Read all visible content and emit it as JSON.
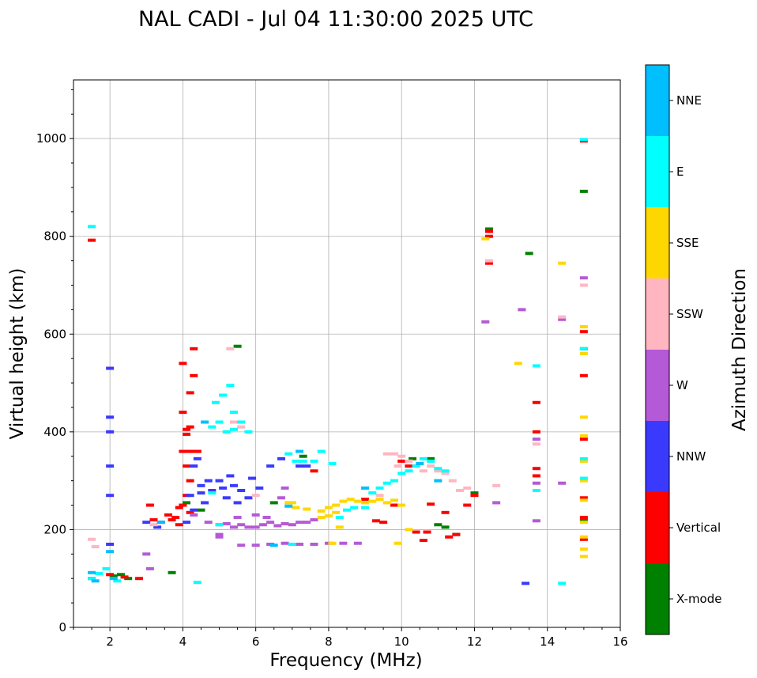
{
  "chart_data": {
    "type": "scatter",
    "title": "NAL CADI - Jul 04 11:30:00 2025 UTC",
    "xlabel": "Frequency (MHz)",
    "ylabel": "Virtual height (km)",
    "xlim": [
      1,
      16
    ],
    "ylim": [
      0,
      1120
    ],
    "xticks": [
      2,
      4,
      6,
      8,
      10,
      12,
      14,
      16
    ],
    "yticks": [
      0,
      200,
      400,
      600,
      800,
      1000
    ],
    "grid": true,
    "colorbar": {
      "label": "Azimuth Direction",
      "categories": [
        "X-mode",
        "Vertical",
        "NNW",
        "W",
        "SSW",
        "SSE",
        "E",
        "NNE"
      ],
      "colors": [
        "#008000",
        "#ff0000",
        "#3a3aff",
        "#b55ad6",
        "#ffb6c1",
        "#ffd700",
        "#00ffff",
        "#00bfff"
      ]
    },
    "series": [
      {
        "name": "X-mode",
        "points": [
          [
            2.1,
            105
          ],
          [
            2.3,
            108
          ],
          [
            2.5,
            100
          ],
          [
            3.7,
            112
          ],
          [
            4.5,
            240
          ],
          [
            4.1,
            255
          ],
          [
            6.5,
            255
          ],
          [
            7.3,
            350
          ],
          [
            10.3,
            345
          ],
          [
            10.8,
            345
          ],
          [
            11.0,
            210
          ],
          [
            11.2,
            205
          ],
          [
            12.4,
            815
          ],
          [
            13.5,
            765
          ],
          [
            15.0,
            892
          ],
          [
            15.0,
            570
          ],
          [
            5.5,
            575
          ],
          [
            11.5,
            190
          ],
          [
            12.0,
            275
          ],
          [
            15.0,
            220
          ]
        ]
      },
      {
        "name": "Vertical",
        "points": [
          [
            1.5,
            792
          ],
          [
            2.0,
            108
          ],
          [
            2.4,
            103
          ],
          [
            2.8,
            100
          ],
          [
            3.1,
            250
          ],
          [
            3.2,
            220
          ],
          [
            3.4,
            215
          ],
          [
            3.6,
            230
          ],
          [
            3.8,
            225
          ],
          [
            3.9,
            245
          ],
          [
            4.0,
            360
          ],
          [
            4.1,
            395
          ],
          [
            4.1,
            330
          ],
          [
            4.2,
            300
          ],
          [
            4.1,
            270
          ],
          [
            4.2,
            480
          ],
          [
            4.0,
            540
          ],
          [
            4.3,
            570
          ],
          [
            4.3,
            515
          ],
          [
            4.0,
            250
          ],
          [
            4.2,
            360
          ],
          [
            4.4,
            360
          ],
          [
            4.1,
            405
          ],
          [
            4.2,
            410
          ],
          [
            3.9,
            210
          ],
          [
            3.7,
            220
          ],
          [
            4.2,
            235
          ],
          [
            4.0,
            440
          ],
          [
            7.6,
            320
          ],
          [
            9.5,
            215
          ],
          [
            9.8,
            250
          ],
          [
            10.0,
            340
          ],
          [
            10.2,
            330
          ],
          [
            10.4,
            195
          ],
          [
            10.6,
            178
          ],
          [
            10.8,
            252
          ],
          [
            11.2,
            235
          ],
          [
            11.3,
            185
          ],
          [
            11.5,
            190
          ],
          [
            11.8,
            250
          ],
          [
            12.0,
            270
          ],
          [
            12.4,
            800
          ],
          [
            12.4,
            745
          ],
          [
            13.7,
            460
          ],
          [
            13.7,
            400
          ],
          [
            13.7,
            325
          ],
          [
            13.7,
            310
          ],
          [
            15.0,
            995
          ],
          [
            15.0,
            605
          ],
          [
            15.0,
            515
          ],
          [
            15.0,
            385
          ],
          [
            15.0,
            265
          ],
          [
            15.0,
            225
          ],
          [
            15.0,
            180
          ],
          [
            9.3,
            218
          ],
          [
            10.7,
            195
          ],
          [
            9.0,
            262
          ],
          [
            12.4,
            810
          ]
        ]
      },
      {
        "name": "NNW",
        "points": [
          [
            2.0,
            530
          ],
          [
            2.0,
            430
          ],
          [
            2.0,
            400
          ],
          [
            2.0,
            330
          ],
          [
            2.0,
            270
          ],
          [
            2.0,
            170
          ],
          [
            3.0,
            215
          ],
          [
            3.3,
            205
          ],
          [
            4.2,
            270
          ],
          [
            4.3,
            330
          ],
          [
            4.4,
            345
          ],
          [
            4.5,
            290
          ],
          [
            4.6,
            255
          ],
          [
            4.5,
            275
          ],
          [
            4.7,
            300
          ],
          [
            4.8,
            280
          ],
          [
            5.0,
            300
          ],
          [
            5.1,
            285
          ],
          [
            5.2,
            265
          ],
          [
            5.3,
            310
          ],
          [
            5.4,
            290
          ],
          [
            5.5,
            255
          ],
          [
            5.6,
            280
          ],
          [
            5.8,
            265
          ],
          [
            5.9,
            305
          ],
          [
            6.1,
            285
          ],
          [
            6.4,
            330
          ],
          [
            6.7,
            345
          ],
          [
            7.2,
            330
          ],
          [
            7.4,
            330
          ],
          [
            4.3,
            240
          ],
          [
            4.1,
            215
          ],
          [
            13.4,
            90
          ],
          [
            1.5,
            100
          ]
        ]
      },
      {
        "name": "W",
        "points": [
          [
            3.0,
            150
          ],
          [
            3.1,
            120
          ],
          [
            4.3,
            230
          ],
          [
            4.7,
            215
          ],
          [
            5.0,
            210
          ],
          [
            5.2,
            212
          ],
          [
            5.4,
            205
          ],
          [
            5.6,
            210
          ],
          [
            5.8,
            205
          ],
          [
            6.0,
            205
          ],
          [
            6.2,
            210
          ],
          [
            6.4,
            215
          ],
          [
            6.6,
            208
          ],
          [
            6.8,
            212
          ],
          [
            7.0,
            210
          ],
          [
            7.2,
            215
          ],
          [
            7.4,
            215
          ],
          [
            7.6,
            220
          ],
          [
            5.0,
            185
          ],
          [
            6.0,
            230
          ],
          [
            6.3,
            225
          ],
          [
            5.5,
            225
          ],
          [
            5.6,
            168
          ],
          [
            6.0,
            168
          ],
          [
            6.4,
            170
          ],
          [
            6.8,
            172
          ],
          [
            7.2,
            170
          ],
          [
            7.6,
            170
          ],
          [
            8.0,
            172
          ],
          [
            8.4,
            172
          ],
          [
            8.8,
            172
          ],
          [
            6.8,
            285
          ],
          [
            6.7,
            265
          ],
          [
            13.3,
            650
          ],
          [
            12.3,
            625
          ],
          [
            12.6,
            255
          ],
          [
            14.4,
            630
          ],
          [
            14.4,
            295
          ],
          [
            13.7,
            385
          ],
          [
            13.7,
            295
          ],
          [
            13.7,
            218
          ],
          [
            15.0,
            715
          ],
          [
            5.0,
            190
          ]
        ]
      },
      {
        "name": "SSW",
        "points": [
          [
            1.5,
            180
          ],
          [
            1.6,
            165
          ],
          [
            3.2,
            210
          ],
          [
            9.6,
            355
          ],
          [
            9.8,
            355
          ],
          [
            10.0,
            350
          ],
          [
            10.2,
            340
          ],
          [
            9.9,
            330
          ],
          [
            10.4,
            330
          ],
          [
            10.6,
            320
          ],
          [
            10.8,
            330
          ],
          [
            11.0,
            320
          ],
          [
            11.2,
            315
          ],
          [
            11.4,
            300
          ],
          [
            11.6,
            280
          ],
          [
            11.8,
            285
          ],
          [
            12.4,
            750
          ],
          [
            12.6,
            290
          ],
          [
            14.4,
            635
          ],
          [
            15.0,
            700
          ],
          [
            13.7,
            375
          ],
          [
            5.3,
            570
          ],
          [
            5.4,
            420
          ],
          [
            5.6,
            410
          ],
          [
            6.0,
            270
          ],
          [
            9.4,
            270
          ]
        ]
      },
      {
        "name": "SSE",
        "points": [
          [
            7.0,
            255
          ],
          [
            7.1,
            245
          ],
          [
            7.4,
            242
          ],
          [
            7.8,
            238
          ],
          [
            8.0,
            245
          ],
          [
            8.2,
            250
          ],
          [
            8.4,
            258
          ],
          [
            8.6,
            262
          ],
          [
            8.8,
            258
          ],
          [
            9.0,
            255
          ],
          [
            9.2,
            258
          ],
          [
            9.4,
            262
          ],
          [
            9.6,
            255
          ],
          [
            9.8,
            260
          ],
          [
            10.0,
            250
          ],
          [
            8.2,
            235
          ],
          [
            8.0,
            228
          ],
          [
            7.8,
            225
          ],
          [
            8.3,
            205
          ],
          [
            8.1,
            172
          ],
          [
            10.2,
            200
          ],
          [
            9.9,
            172
          ],
          [
            12.3,
            795
          ],
          [
            13.2,
            540
          ],
          [
            14.4,
            745
          ],
          [
            15.0,
            615
          ],
          [
            15.0,
            560
          ],
          [
            15.0,
            430
          ],
          [
            15.0,
            392
          ],
          [
            15.0,
            340
          ],
          [
            15.0,
            300
          ],
          [
            15.0,
            260
          ],
          [
            15.0,
            215
          ],
          [
            15.0,
            160
          ],
          [
            15.0,
            145
          ],
          [
            15.0,
            185
          ],
          [
            6.9,
            255
          ]
        ]
      },
      {
        "name": "E",
        "points": [
          [
            1.5,
            820
          ],
          [
            1.5,
            100
          ],
          [
            1.7,
            110
          ],
          [
            1.9,
            120
          ],
          [
            2.2,
            95
          ],
          [
            4.4,
            92
          ],
          [
            4.8,
            410
          ],
          [
            5.0,
            420
          ],
          [
            5.1,
            475
          ],
          [
            5.2,
            400
          ],
          [
            5.4,
            405
          ],
          [
            5.6,
            420
          ],
          [
            5.8,
            400
          ],
          [
            5.3,
            495
          ],
          [
            5.4,
            440
          ],
          [
            4.9,
            460
          ],
          [
            6.9,
            355
          ],
          [
            7.1,
            340
          ],
          [
            7.3,
            340
          ],
          [
            7.6,
            340
          ],
          [
            7.8,
            360
          ],
          [
            8.1,
            335
          ],
          [
            9.0,
            245
          ],
          [
            9.2,
            275
          ],
          [
            9.4,
            285
          ],
          [
            9.6,
            295
          ],
          [
            9.8,
            300
          ],
          [
            10.0,
            315
          ],
          [
            10.2,
            320
          ],
          [
            10.4,
            330
          ],
          [
            10.6,
            345
          ],
          [
            10.8,
            340
          ],
          [
            11.0,
            325
          ],
          [
            11.2,
            320
          ],
          [
            8.5,
            240
          ],
          [
            8.7,
            245
          ],
          [
            8.3,
            225
          ],
          [
            13.7,
            535
          ],
          [
            13.7,
            280
          ],
          [
            14.4,
            90
          ],
          [
            15.0,
            998
          ],
          [
            15.0,
            570
          ],
          [
            15.0,
            345
          ],
          [
            15.0,
            305
          ],
          [
            4.8,
            275
          ],
          [
            5.0,
            210
          ],
          [
            7.0,
            170
          ]
        ]
      },
      {
        "name": "NNE",
        "points": [
          [
            1.5,
            112
          ],
          [
            1.6,
            95
          ],
          [
            2.0,
            155
          ],
          [
            2.1,
            100
          ],
          [
            3.4,
            215
          ],
          [
            4.6,
            420
          ],
          [
            6.5,
            168
          ],
          [
            6.9,
            248
          ],
          [
            7.2,
            360
          ],
          [
            9.0,
            285
          ],
          [
            10.5,
            335
          ],
          [
            11.0,
            300
          ]
        ]
      }
    ]
  }
}
